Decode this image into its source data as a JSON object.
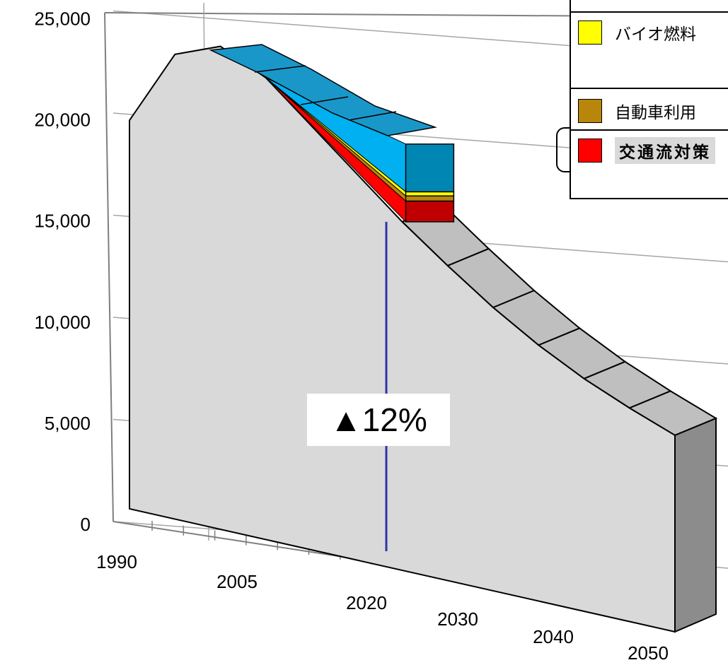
{
  "chart_data": {
    "type": "area",
    "title": "",
    "xlabel": "",
    "ylabel": "",
    "ylim": [
      0,
      25000
    ],
    "y_ticks": [
      "25,000",
      "20,000",
      "15,000",
      "10,000",
      "5,000",
      "0"
    ],
    "x_ticks": [
      "1990",
      "2005",
      "2020",
      "2030",
      "2040",
      "2050"
    ],
    "series": [
      {
        "name": "",
        "x": [
          "1990",
          "1995",
          "2000",
          "2005",
          "2010",
          "2015",
          "2020",
          "2025",
          "2030",
          "2035",
          "2040",
          "2045",
          "2050"
        ],
        "values": [
          19000,
          22500,
          23200,
          22000,
          20000,
          18000,
          16000,
          14200,
          12500,
          11000,
          9700,
          8600,
          7600
        ]
      }
    ],
    "reductions_2020": [
      {
        "name": "交通流対策",
        "value": 1000,
        "color": "#ff0000"
      },
      {
        "name": "自動車利用",
        "value": 250,
        "color": "#b8860b"
      },
      {
        "name": "バイオ燃料",
        "value": 200,
        "color": "#ffff00"
      },
      {
        "name": "",
        "value": 2300,
        "color": "#00b0f0"
      }
    ],
    "grid": true,
    "legend_position": "top-right",
    "annotation": {
      "text": "▲12%",
      "x": "2020"
    }
  },
  "legend": [
    {
      "label": "バイオ燃料",
      "color": "#ffff00",
      "bold": false
    },
    {
      "label": "自動車利用",
      "color": "#b8860b",
      "bold": false
    },
    {
      "label": "交通流対策",
      "color": "#ff0000",
      "bold": true
    }
  ],
  "colors": {
    "area_front": "#d9d9d9",
    "area_top": "#bfbfbf",
    "area_side": "#8c8c8c",
    "reduction_top": "#1a97c9",
    "reduction_front": "#00b0f0",
    "marker_line": "#3333aa"
  }
}
